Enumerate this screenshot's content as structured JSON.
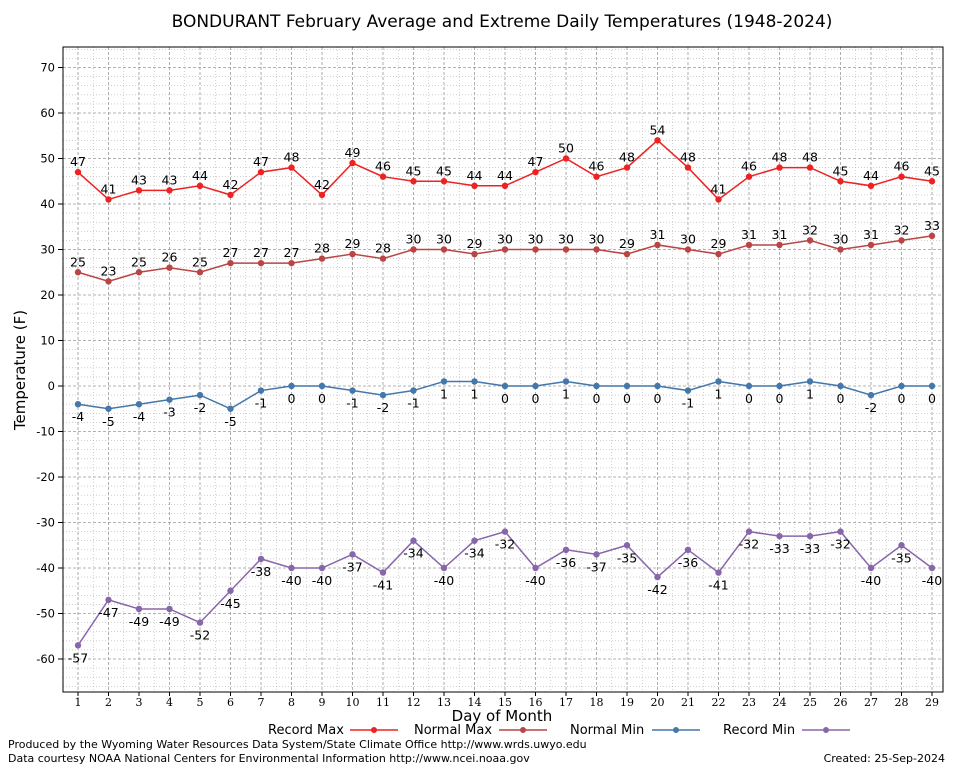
{
  "chart_data": {
    "type": "line",
    "title": "BONDURANT February Average and Extreme Daily Temperatures (1948-2024)",
    "xlabel": "Day of Month",
    "ylabel": "Temperature (F)",
    "ylim": [
      -68,
      74
    ],
    "yticks": [
      -60,
      -50,
      -40,
      -30,
      -20,
      -10,
      0,
      10,
      20,
      30,
      40,
      50,
      60,
      70
    ],
    "grid": true,
    "legend_position": "bottom",
    "x": [
      1,
      2,
      3,
      4,
      5,
      6,
      7,
      8,
      9,
      10,
      11,
      12,
      13,
      14,
      15,
      16,
      17,
      18,
      19,
      20,
      21,
      22,
      23,
      24,
      25,
      26,
      27,
      28,
      29
    ],
    "series": [
      {
        "name": "Record Max",
        "color": "#ee2222",
        "label_pos": "above",
        "values": [
          47,
          41,
          43,
          43,
          44,
          42,
          47,
          48,
          42,
          49,
          46,
          45,
          45,
          44,
          44,
          47,
          50,
          46,
          48,
          54,
          48,
          41,
          46,
          48,
          48,
          45,
          44,
          46,
          45
        ]
      },
      {
        "name": "Normal Max",
        "color": "#bb4444",
        "label_pos": "above",
        "values": [
          25,
          23,
          25,
          26,
          25,
          27,
          27,
          27,
          28,
          29,
          28,
          30,
          30,
          29,
          30,
          30,
          30,
          30,
          29,
          31,
          30,
          29,
          31,
          31,
          32,
          30,
          31,
          32,
          33
        ]
      },
      {
        "name": "Normal Min",
        "color": "#4477aa",
        "label_pos": "below",
        "values": [
          -4,
          -5,
          -4,
          -3,
          -2,
          -5,
          -1,
          0,
          0,
          -1,
          -2,
          -1,
          1,
          1,
          0,
          0,
          1,
          0,
          0,
          0,
          -1,
          1,
          0,
          0,
          1,
          0,
          -2,
          0,
          0
        ]
      },
      {
        "name": "Record Min",
        "color": "#8866aa",
        "label_pos": "below",
        "values": [
          -57,
          -47,
          -49,
          -49,
          -52,
          -45,
          -38,
          -40,
          -40,
          -37,
          -41,
          -34,
          -40,
          -34,
          -32,
          -40,
          -36,
          -37,
          -35,
          -42,
          -36,
          -41,
          -32,
          -33,
          -33,
          -32,
          -40,
          -35,
          -40
        ]
      }
    ]
  },
  "footer": {
    "produced_by": "Produced by the Wyoming Water Resources Data System/State Climate Office http://www.wrds.uwyo.edu",
    "courtesy": "Data courtesy NOAA National Centers for Environmental Information http://www.ncei.noaa.gov",
    "created": "Created:  25-Sep-2024"
  }
}
